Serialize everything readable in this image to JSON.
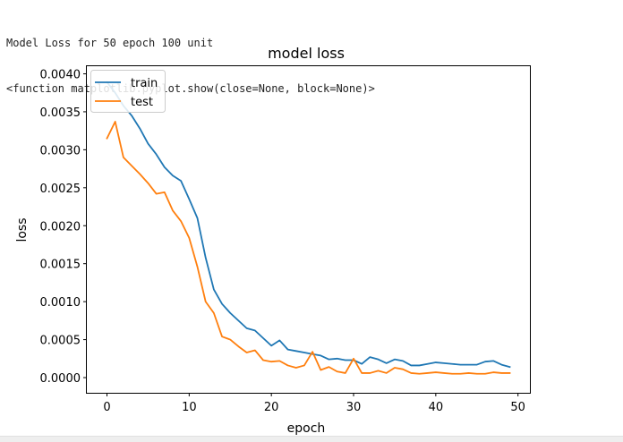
{
  "console": {
    "line1": "Model Loss for 50 epoch 100 unit",
    "line2": "<function matplotlib.pyplot.show(close=None, block=None)>"
  },
  "chart_data": {
    "type": "line",
    "title": "model loss",
    "xlabel": "epoch",
    "ylabel": "loss",
    "xlim": [
      -2.45,
      51.45
    ],
    "ylim": [
      -0.0002,
      0.0041
    ],
    "xticks": [
      0,
      10,
      20,
      30,
      40,
      50
    ],
    "xtick_labels": [
      "0",
      "10",
      "20",
      "30",
      "40",
      "50"
    ],
    "yticks": [
      0.0,
      0.0005,
      0.001,
      0.0015,
      0.002,
      0.0025,
      0.003,
      0.0035,
      0.004
    ],
    "ytick_labels": [
      "0.0000",
      "0.0005",
      "0.0010",
      "0.0015",
      "0.0020",
      "0.0025",
      "0.0030",
      "0.0035",
      "0.0040"
    ],
    "grid": false,
    "legend_position": "upper-left",
    "series": [
      {
        "name": "train",
        "color": "#1f77b4",
        "x": [
          0,
          1,
          2,
          3,
          4,
          5,
          6,
          7,
          8,
          9,
          10,
          11,
          12,
          13,
          14,
          15,
          16,
          17,
          18,
          19,
          20,
          21,
          22,
          23,
          24,
          25,
          26,
          27,
          28,
          29,
          30,
          31,
          32,
          33,
          34,
          35,
          36,
          37,
          38,
          39,
          40,
          41,
          42,
          43,
          44,
          45,
          46,
          47,
          48,
          49
        ],
        "values": [
          0.00389,
          0.00375,
          0.00358,
          0.00345,
          0.00328,
          0.00308,
          0.00294,
          0.00277,
          0.00266,
          0.00259,
          0.00235,
          0.0021,
          0.00158,
          0.00116,
          0.00097,
          0.00085,
          0.00075,
          0.00065,
          0.00062,
          0.00052,
          0.00042,
          0.00049,
          0.00037,
          0.00035,
          0.00033,
          0.00031,
          0.00029,
          0.00024,
          0.00025,
          0.00023,
          0.00023,
          0.00018,
          0.00027,
          0.00024,
          0.00019,
          0.00024,
          0.00022,
          0.00016,
          0.00016,
          0.00018,
          0.0002,
          0.00019,
          0.00018,
          0.00017,
          0.00017,
          0.00017,
          0.00021,
          0.00022,
          0.00017,
          0.00014
        ]
      },
      {
        "name": "test",
        "color": "#ff7f0e",
        "x": [
          0,
          1,
          2,
          3,
          4,
          5,
          6,
          7,
          8,
          9,
          10,
          11,
          12,
          13,
          14,
          15,
          16,
          17,
          18,
          19,
          20,
          21,
          22,
          23,
          24,
          25,
          26,
          27,
          28,
          29,
          30,
          31,
          32,
          33,
          34,
          35,
          36,
          37,
          38,
          39,
          40,
          41,
          42,
          43,
          44,
          45,
          46,
          47,
          48,
          49
        ],
        "values": [
          0.00315,
          0.00337,
          0.0029,
          0.00279,
          0.00268,
          0.00256,
          0.00242,
          0.00244,
          0.0022,
          0.00206,
          0.00184,
          0.00146,
          0.001,
          0.00085,
          0.00054,
          0.0005,
          0.00041,
          0.00033,
          0.00036,
          0.00023,
          0.00021,
          0.00022,
          0.00016,
          0.00013,
          0.00016,
          0.00034,
          0.0001,
          0.00014,
          8e-05,
          6e-05,
          0.00025,
          6e-05,
          6e-05,
          9e-05,
          6e-05,
          0.00013,
          0.00011,
          6e-05,
          5e-05,
          6e-05,
          7e-05,
          6e-05,
          5e-05,
          5e-05,
          6e-05,
          5e-05,
          5e-05,
          7e-05,
          6e-05,
          6e-05
        ]
      }
    ]
  }
}
